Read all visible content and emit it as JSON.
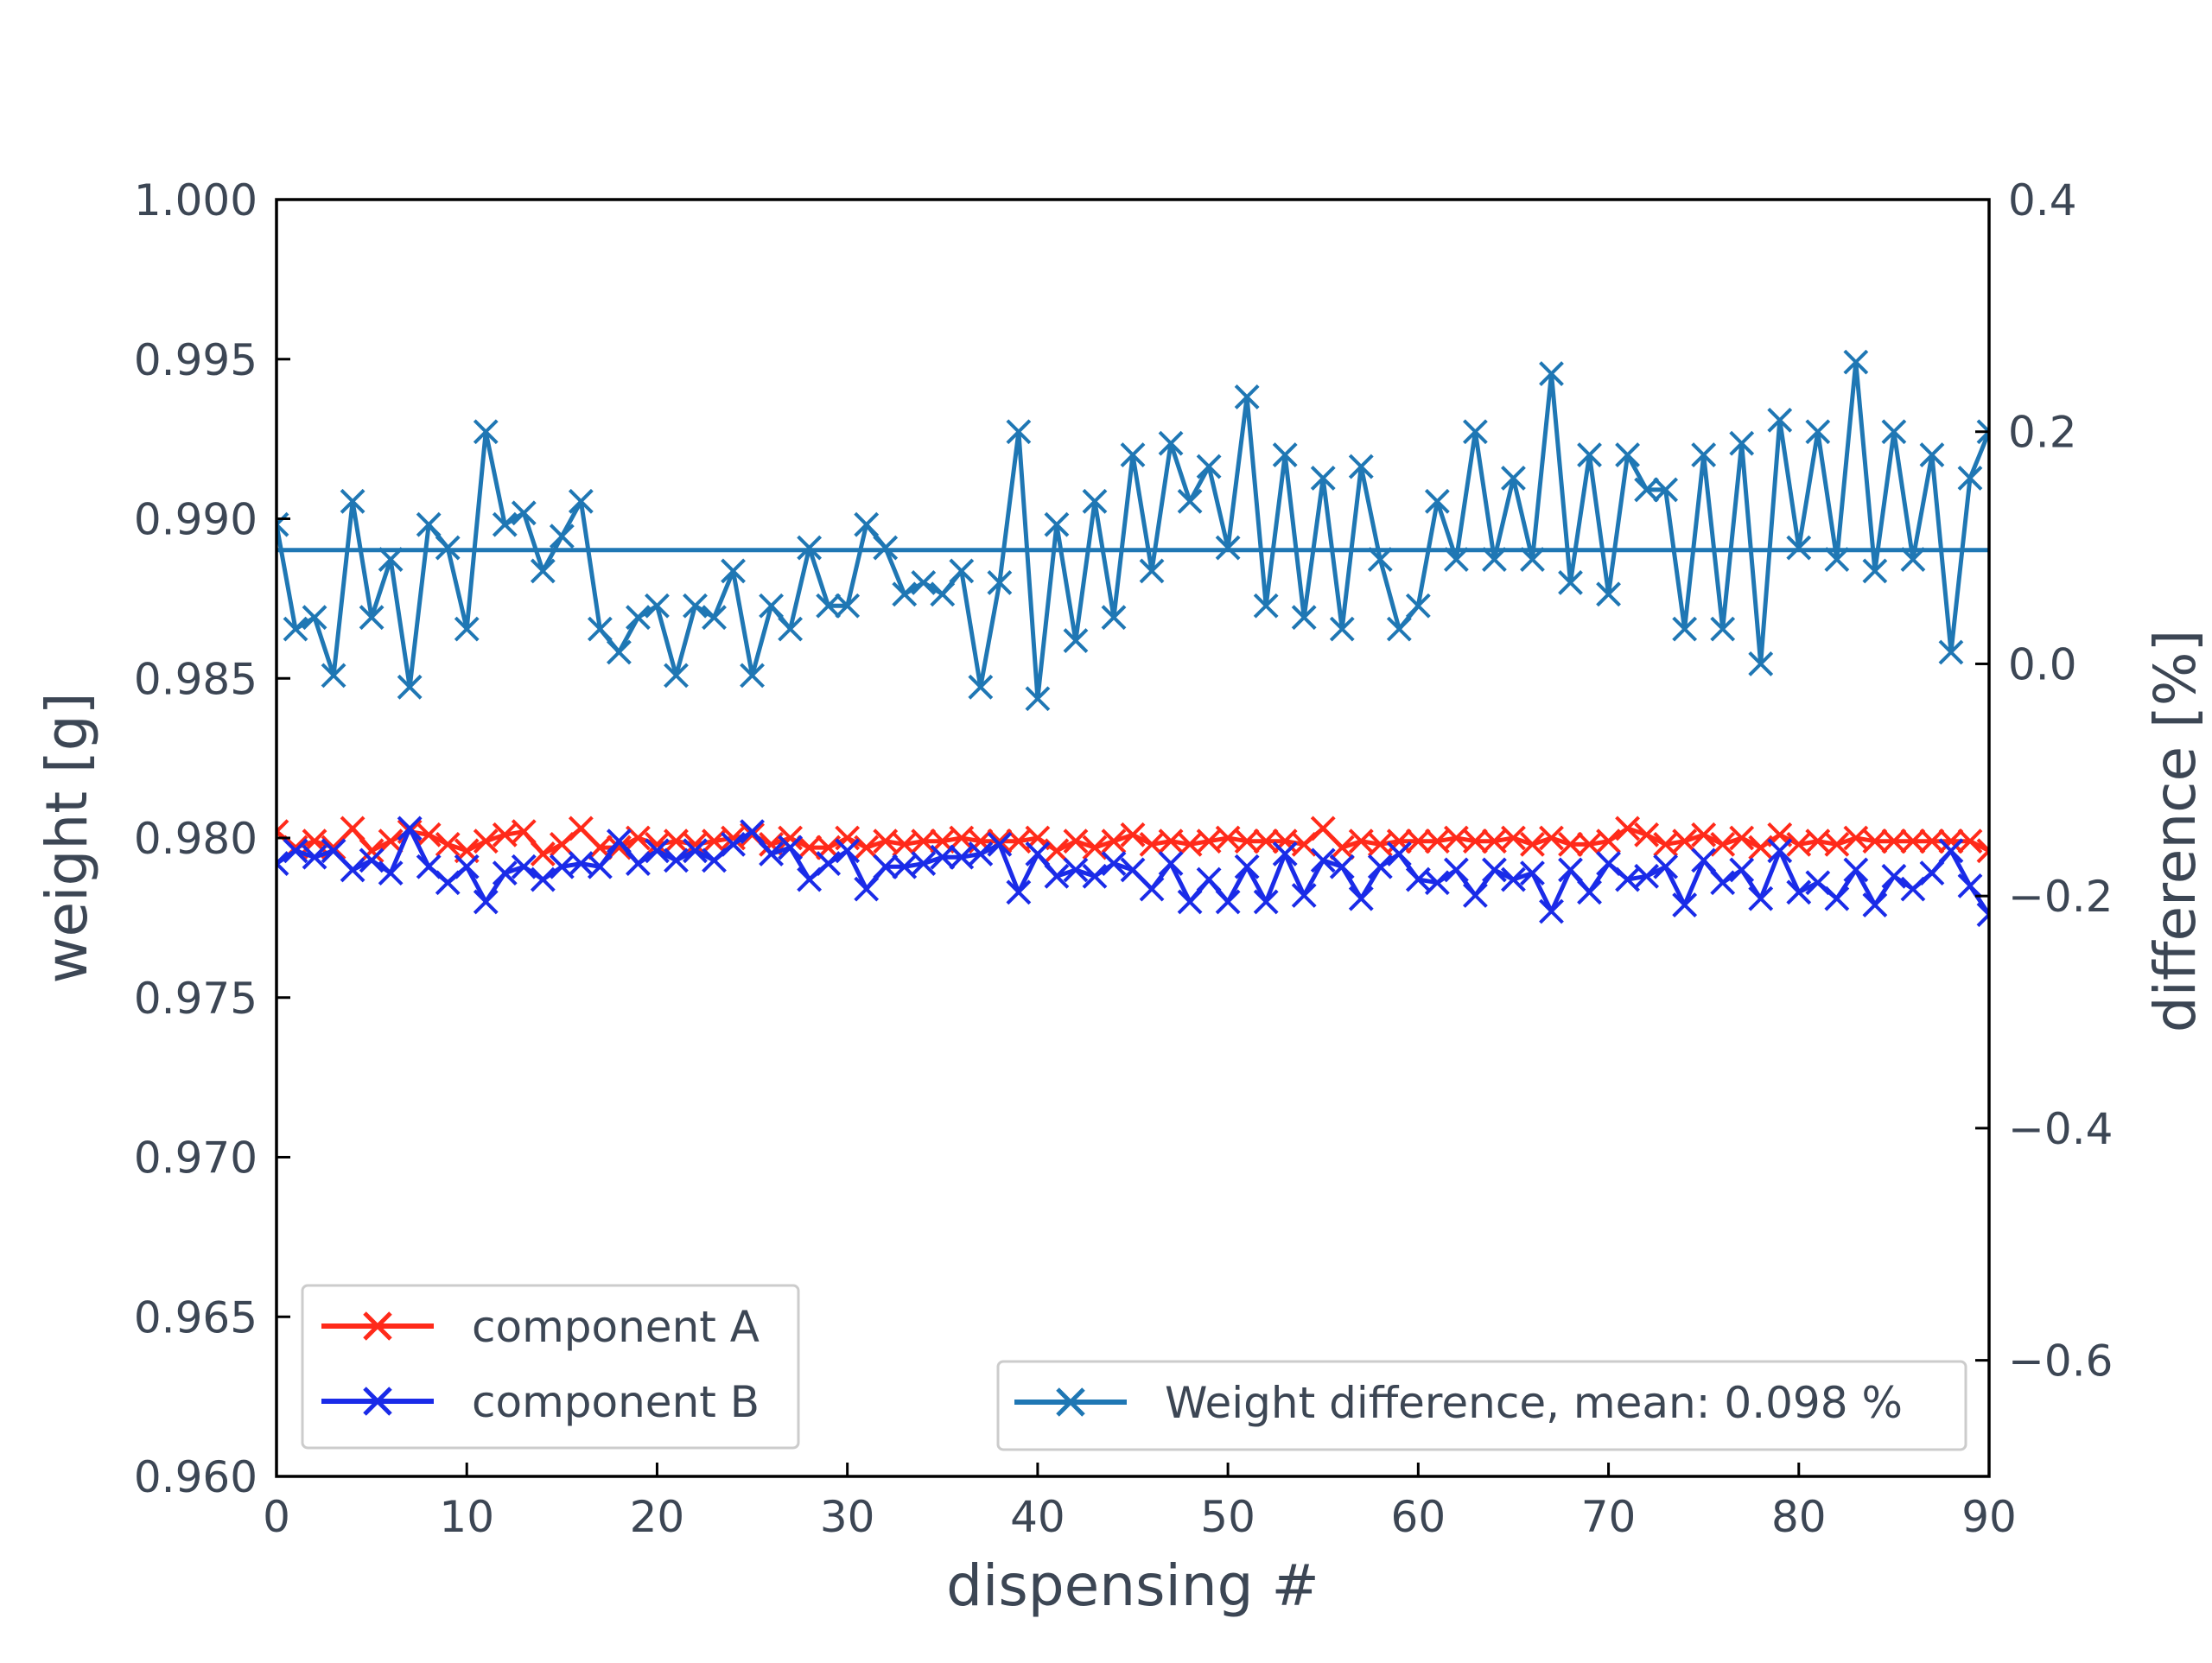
{
  "chart_data": {
    "type": "line",
    "xlabel": "dispensing #",
    "ylabel_left": "weight [g]",
    "ylabel_right": "difference [%]",
    "xlim": [
      0,
      90
    ],
    "ylim_left": [
      0.96,
      1.0
    ],
    "ylim_right": [
      -0.7,
      0.4
    ],
    "x_ticks": [
      0,
      10,
      20,
      30,
      40,
      50,
      60,
      70,
      80,
      90
    ],
    "x_tick_labels": [
      "0",
      "10",
      "20",
      "30",
      "40",
      "50",
      "60",
      "70",
      "80",
      "90"
    ],
    "y_left_ticks": [
      0.96,
      0.965,
      0.97,
      0.975,
      0.98,
      0.985,
      0.99,
      0.995,
      1.0
    ],
    "y_left_tick_labels": [
      "0.960",
      "0.965",
      "0.970",
      "0.975",
      "0.980",
      "0.985",
      "0.990",
      "0.995",
      "1.000"
    ],
    "y_right_ticks": [
      -0.6,
      -0.4,
      -0.2,
      0.0,
      0.2,
      0.4
    ],
    "y_right_tick_labels": [
      "−0.6",
      "−0.4",
      "−0.2",
      "0.0",
      "0.2",
      "0.4"
    ],
    "grid": false,
    "legend_left": {
      "placement": "lower-left",
      "entries": [
        "component A",
        "component B"
      ]
    },
    "legend_right": {
      "placement": "lower-right",
      "entries": [
        "Weight difference, mean: 0.098 %"
      ]
    },
    "mean_line": {
      "axis": "right",
      "value": 0.098
    },
    "series": [
      {
        "name": "component A",
        "axis": "left",
        "color": "#ff2a1a",
        "marker": "x",
        "x": [
          0,
          1,
          2,
          3,
          4,
          5,
          6,
          7,
          8,
          9,
          10,
          11,
          12,
          13,
          14,
          15,
          16,
          17,
          18,
          19,
          20,
          21,
          22,
          23,
          24,
          25,
          26,
          27,
          28,
          29,
          30,
          31,
          32,
          33,
          34,
          35,
          36,
          37,
          38,
          39,
          40,
          41,
          42,
          43,
          44,
          45,
          46,
          47,
          48,
          49,
          50,
          51,
          52,
          53,
          54,
          55,
          56,
          57,
          58,
          59,
          60,
          61,
          62,
          63,
          64,
          65,
          66,
          67,
          68,
          69,
          70,
          71,
          72,
          73,
          74,
          75,
          76,
          77,
          78,
          79,
          80,
          81,
          82,
          83,
          84,
          85,
          86,
          87,
          88,
          89,
          90
        ],
        "values": [
          0.9802,
          0.9797,
          0.9799,
          0.9797,
          0.9803,
          0.9796,
          0.9799,
          0.9802,
          0.9801,
          0.9798,
          0.9796,
          0.9799,
          0.9801,
          0.9802,
          0.9795,
          0.9798,
          0.9803,
          0.9797,
          0.9797,
          0.98,
          0.9798,
          0.9799,
          0.9798,
          0.9799,
          0.98,
          0.9801,
          0.9798,
          0.98,
          0.9797,
          0.9797,
          0.98,
          0.9797,
          0.9799,
          0.9798,
          0.9799,
          0.9799,
          0.98,
          0.9799,
          0.9799,
          0.9799,
          0.98,
          0.9796,
          0.9799,
          0.9797,
          0.9799,
          0.9801,
          0.9798,
          0.9799,
          0.9798,
          0.9799,
          0.98,
          0.9799,
          0.9799,
          0.9799,
          0.9798,
          0.9803,
          0.9797,
          0.9799,
          0.9798,
          0.9799,
          0.9799,
          0.9799,
          0.98,
          0.9799,
          0.9799,
          0.98,
          0.9798,
          0.98,
          0.9798,
          0.9798,
          0.9799,
          0.9803,
          0.9801,
          0.9798,
          0.9799,
          0.9801,
          0.9798,
          0.98,
          0.9797,
          0.9801,
          0.9798,
          0.9799,
          0.9798,
          0.98,
          0.9799,
          0.9799,
          0.9799,
          0.9799,
          0.9799,
          0.9799,
          0.9796
        ]
      },
      {
        "name": "component B",
        "axis": "left",
        "color": "#1a2be8",
        "marker": "x",
        "x": [
          0,
          1,
          2,
          3,
          4,
          5,
          6,
          7,
          8,
          9,
          10,
          11,
          12,
          13,
          14,
          15,
          16,
          17,
          18,
          19,
          20,
          21,
          22,
          23,
          24,
          25,
          26,
          27,
          28,
          29,
          30,
          31,
          32,
          33,
          34,
          35,
          36,
          37,
          38,
          39,
          40,
          41,
          42,
          43,
          44,
          45,
          46,
          47,
          48,
          49,
          50,
          51,
          52,
          53,
          54,
          55,
          56,
          57,
          58,
          59,
          60,
          61,
          62,
          63,
          64,
          65,
          66,
          67,
          68,
          69,
          70,
          71,
          72,
          73,
          74,
          75,
          76,
          77,
          78,
          79,
          80,
          81,
          82,
          83,
          84,
          85,
          86,
          87,
          88,
          89,
          90
        ],
        "values": [
          0.9792,
          0.9796,
          0.9794,
          0.9796,
          0.979,
          0.9793,
          0.9789,
          0.9803,
          0.9791,
          0.9786,
          0.9791,
          0.978,
          0.9789,
          0.9791,
          0.9787,
          0.9791,
          0.9792,
          0.9791,
          0.9799,
          0.9792,
          0.9796,
          0.9793,
          0.9796,
          0.9793,
          0.9798,
          0.9802,
          0.9795,
          0.9797,
          0.9787,
          0.9792,
          0.9796,
          0.9784,
          0.9791,
          0.9791,
          0.9792,
          0.9794,
          0.9794,
          0.9795,
          0.9798,
          0.9783,
          0.9795,
          0.9788,
          0.979,
          0.9788,
          0.9792,
          0.979,
          0.9784,
          0.9792,
          0.978,
          0.9787,
          0.978,
          0.9791,
          0.978,
          0.9795,
          0.9782,
          0.9793,
          0.9791,
          0.9781,
          0.9791,
          0.9795,
          0.9787,
          0.9786,
          0.979,
          0.9782,
          0.979,
          0.9787,
          0.9789,
          0.9777,
          0.979,
          0.9783,
          0.9792,
          0.9787,
          0.9788,
          0.9791,
          0.9779,
          0.9793,
          0.9786,
          0.979,
          0.9781,
          0.9796,
          0.9783,
          0.9786,
          0.9781,
          0.979,
          0.9779,
          0.9788,
          0.9784,
          0.9789,
          0.9796,
          0.9785,
          0.9776
        ]
      },
      {
        "name": "Weight difference, mean: 0.098 %",
        "axis": "right",
        "color": "#1f77b4",
        "marker": "x",
        "x": [
          0,
          1,
          2,
          3,
          4,
          5,
          6,
          7,
          8,
          9,
          10,
          11,
          12,
          13,
          14,
          15,
          16,
          17,
          18,
          19,
          20,
          21,
          22,
          23,
          24,
          25,
          26,
          27,
          28,
          29,
          30,
          31,
          32,
          33,
          34,
          35,
          36,
          37,
          38,
          39,
          40,
          41,
          42,
          43,
          44,
          45,
          46,
          47,
          48,
          49,
          50,
          51,
          52,
          53,
          54,
          55,
          56,
          57,
          58,
          59,
          60,
          61,
          62,
          63,
          64,
          65,
          66,
          67,
          68,
          69,
          70,
          71,
          72,
          73,
          74,
          75,
          76,
          77,
          78,
          79,
          80,
          81,
          82,
          83,
          84,
          85,
          86,
          87,
          88,
          89,
          90
        ],
        "values": [
          0.12,
          0.03,
          0.04,
          -0.01,
          0.14,
          0.04,
          0.09,
          -0.02,
          0.12,
          0.1,
          0.03,
          0.2,
          0.12,
          0.13,
          0.08,
          0.11,
          0.14,
          0.03,
          0.01,
          0.04,
          0.05,
          -0.01,
          0.05,
          0.04,
          0.08,
          -0.01,
          0.05,
          0.03,
          0.1,
          0.05,
          0.05,
          0.12,
          0.1,
          0.06,
          0.07,
          0.06,
          0.08,
          -0.02,
          0.07,
          0.2,
          -0.03,
          0.12,
          0.02,
          0.14,
          0.04,
          0.18,
          0.08,
          0.19,
          0.14,
          0.17,
          0.1,
          0.23,
          0.05,
          0.18,
          0.04,
          0.16,
          0.03,
          0.17,
          0.09,
          0.03,
          0.05,
          0.14,
          0.09,
          0.2,
          0.09,
          0.16,
          0.09,
          0.25,
          0.07,
          0.18,
          0.06,
          0.18,
          0.15,
          0.15,
          0.03,
          0.18,
          0.03,
          0.19,
          0.0,
          0.21,
          0.1,
          0.2,
          0.09,
          0.26,
          0.08,
          0.2,
          0.09,
          0.18,
          0.01,
          0.16,
          0.2
        ]
      }
    ]
  }
}
